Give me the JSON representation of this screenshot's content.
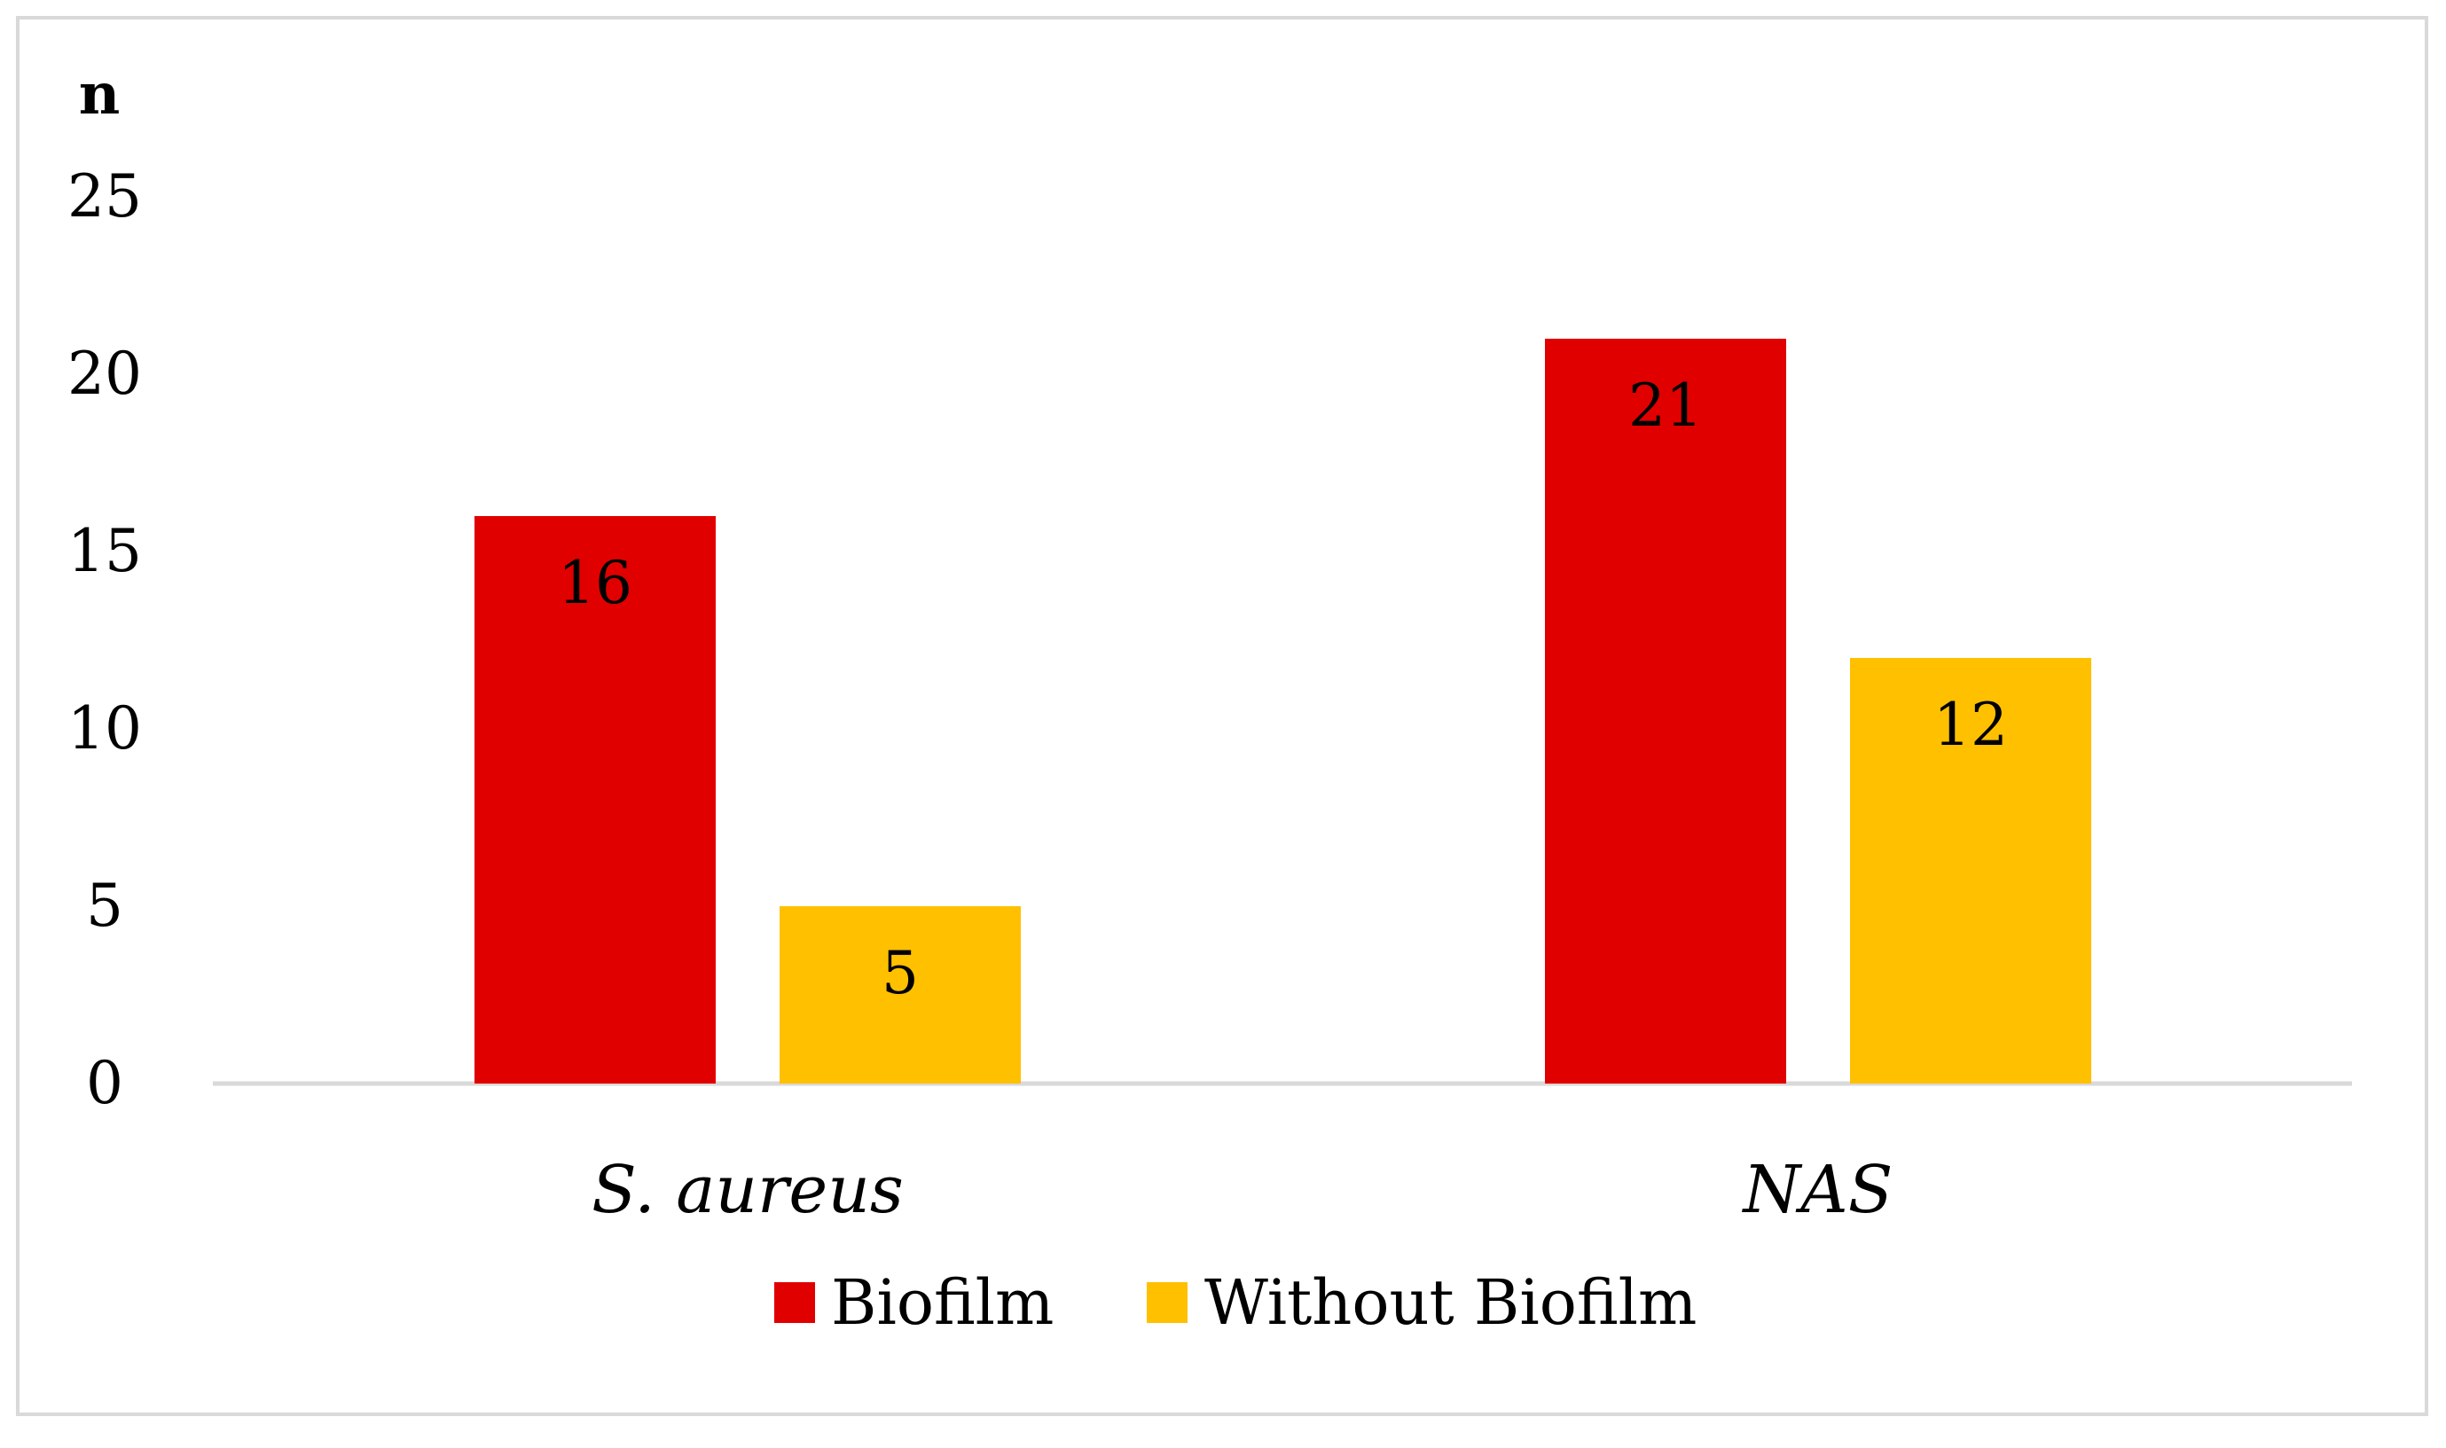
{
  "chart_data": {
    "type": "bar",
    "ylabel": "n",
    "xlabel": "",
    "ylim": [
      0,
      25
    ],
    "yticks": [
      0,
      5,
      10,
      15,
      20,
      25
    ],
    "grid": false,
    "legend_position": "bottom",
    "categories": [
      "S. aureus",
      "NAS"
    ],
    "series": [
      {
        "name": "Biofilm",
        "values": [
          16,
          21
        ],
        "color": "#E00000"
      },
      {
        "name": "Without Biofilm",
        "values": [
          5,
          12
        ],
        "color": "#FFC000"
      }
    ]
  }
}
